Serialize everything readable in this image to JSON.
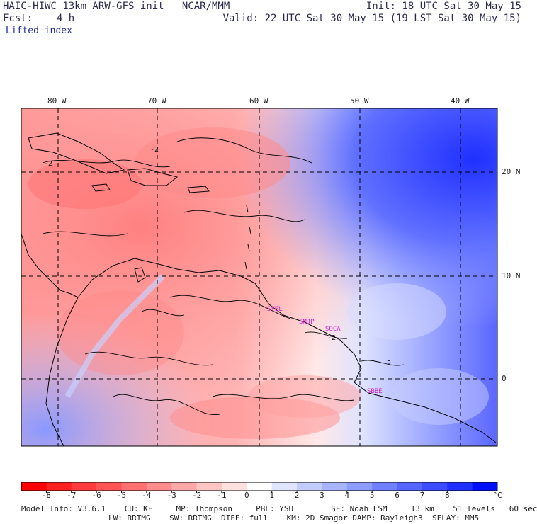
{
  "header": {
    "left_line1": "HAIC-HIWC 13km ARW-GFS init   NCAR/MMM",
    "left_line2": "Fcst:    4 h",
    "field_name": "Lifted index",
    "right_line1": "Init: 18 UTC Sat 30 May 15",
    "right_line2": "Valid: 22 UTC Sat 30 May 15 (19 LST Sat 30 May 15)"
  },
  "map": {
    "lon_labels": [
      "80 W",
      "70 W",
      "60 W",
      "50 W",
      "40 W"
    ],
    "lat_labels": [
      "20 N",
      "10 N",
      "0"
    ],
    "stations": [
      "SYEL",
      "SMJP",
      "SOCA",
      "SBBE"
    ],
    "contour_labels": [
      "-2",
      "-2",
      "-2",
      "-2"
    ]
  },
  "colorbar": {
    "ticks": [
      "-8",
      "-7",
      "-6",
      "-5",
      "-4",
      "-3",
      "-2",
      "-1",
      "0",
      "1",
      "2",
      "3",
      "4",
      "5",
      "6",
      "7",
      "8"
    ],
    "unit": "°C",
    "colors": [
      "#ff0000",
      "#ff2020",
      "#ff3c3c",
      "#ff5555",
      "#ff7070",
      "#ff8c8c",
      "#ffa8a8",
      "#ffc4c4",
      "#ffe0e0",
      "#ffffff",
      "#e0e4ff",
      "#c4ccff",
      "#a8b4ff",
      "#8c9cff",
      "#7080ff",
      "#5566ff",
      "#3c4cff",
      "#2030ff",
      "#0010ff"
    ]
  },
  "footer": {
    "line1": "Model Info: V3.6.1    CU: KF     MP: Thompson     PBL: YSU        SF: Noah LSM     13 km    51 levels   60 sec",
    "line2": "LW: RRTMG    SW: RRTMG  DIFF: full    KM: 2D Smagor DAMP: Rayleigh3  SFLAY: MM5"
  }
}
